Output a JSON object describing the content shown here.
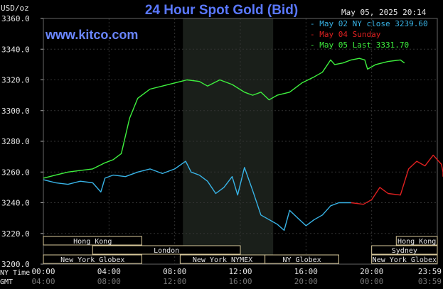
{
  "header": {
    "title": "24 Hour Spot Gold (Bid)",
    "timestamp": "May 05, 2025 20:14",
    "unit": "USD/oz",
    "brand": "www.kitco.com"
  },
  "legend": [
    {
      "label": "May 02 NY close 3239.60",
      "color": "#38b3e6"
    },
    {
      "label": "May 04 Sunday",
      "color": "#e02020"
    },
    {
      "label": "May 05 Last 3331.70",
      "color": "#3ef03e"
    }
  ],
  "timezones": {
    "ny": "NY Time",
    "gmt": "GMT"
  },
  "sessions": [
    {
      "name": "Hong Kong",
      "start": "00:00",
      "end": "06:00",
      "row": 1
    },
    {
      "name": "Hong Kong",
      "start": "21:30",
      "end": "24:00",
      "row": 1
    },
    {
      "name": "London",
      "start": "03:00",
      "end": "12:00",
      "row": 2
    },
    {
      "name": "Sydney",
      "start": "20:00",
      "end": "24:00",
      "row": 2
    },
    {
      "name": "New York Globex",
      "start": "00:00",
      "end": "06:00",
      "row": 3
    },
    {
      "name": "New York NYMEX",
      "start": "08:20",
      "end": "13:30",
      "row": 3
    },
    {
      "name": "NY Globex",
      "start": "13:30",
      "end": "18:00",
      "row": 3
    },
    {
      "name": "New York Globex",
      "start": "20:00",
      "end": "24:00",
      "row": 3
    }
  ],
  "chart_data": {
    "type": "line",
    "xlim": [
      "00:00",
      "24:00"
    ],
    "ylim": [
      3200,
      3360
    ],
    "yticks": [
      "3200.0",
      "3220.0",
      "3240.0",
      "3260.0",
      "3280.0",
      "3300.0",
      "3320.0",
      "3340.0",
      "3360.0"
    ],
    "xticks_ny": [
      "00:00",
      "04:00",
      "08:00",
      "12:00",
      "16:00",
      "20:00",
      "23:59"
    ],
    "xticks_gmt": [
      "04:00",
      "08:00",
      "12:00",
      "16:00",
      "20:00",
      "00:00",
      "03:59"
    ],
    "shaded_region": [
      "08:30",
      "14:00"
    ],
    "series": [
      {
        "name": "May 02 NY close 3239.60",
        "color": "#38b3e6",
        "points": [
          [
            "00:00",
            3255
          ],
          [
            "00:45",
            3253
          ],
          [
            "01:30",
            3252
          ],
          [
            "02:15",
            3254
          ],
          [
            "03:00",
            3253
          ],
          [
            "03:30",
            3247
          ],
          [
            "03:45",
            3256
          ],
          [
            "04:15",
            3258
          ],
          [
            "05:00",
            3257
          ],
          [
            "05:45",
            3260
          ],
          [
            "06:30",
            3262
          ],
          [
            "07:15",
            3259
          ],
          [
            "08:00",
            3262
          ],
          [
            "08:40",
            3267
          ],
          [
            "09:00",
            3260
          ],
          [
            "09:30",
            3258
          ],
          [
            "10:00",
            3254
          ],
          [
            "10:30",
            3246
          ],
          [
            "11:00",
            3250
          ],
          [
            "11:30",
            3257
          ],
          [
            "11:50",
            3245
          ],
          [
            "12:15",
            3263
          ],
          [
            "12:45",
            3248
          ],
          [
            "13:15",
            3232
          ],
          [
            "13:45",
            3229
          ],
          [
            "14:15",
            3226
          ],
          [
            "14:40",
            3222
          ],
          [
            "15:00",
            3235
          ],
          [
            "15:30",
            3230
          ],
          [
            "16:00",
            3225
          ],
          [
            "16:30",
            3229
          ],
          [
            "17:00",
            3232
          ],
          [
            "17:30",
            3238
          ],
          [
            "18:00",
            3240
          ],
          [
            "18:45",
            3240
          ]
        ]
      },
      {
        "name": "May 04 Sunday",
        "color": "#e02020",
        "points": [
          [
            "18:45",
            3240
          ],
          [
            "19:30",
            3239
          ],
          [
            "20:00",
            3242
          ],
          [
            "20:30",
            3250
          ],
          [
            "21:00",
            3246
          ],
          [
            "21:45",
            3245
          ],
          [
            "22:15",
            3262
          ],
          [
            "22:45",
            3267
          ],
          [
            "23:15",
            3264
          ],
          [
            "23:45",
            3271
          ],
          [
            "24:15",
            3265
          ],
          [
            "24:35",
            3260
          ],
          [
            "25:00",
            3257
          ]
        ]
      },
      {
        "name": "May 05 Last 3331.70",
        "color": "#3ef03e",
        "points": [
          [
            "00:00",
            3256
          ],
          [
            "00:45",
            3258
          ],
          [
            "01:30",
            3260
          ],
          [
            "02:15",
            3261
          ],
          [
            "03:00",
            3262
          ],
          [
            "03:45",
            3266
          ],
          [
            "04:15",
            3268
          ],
          [
            "04:45",
            3272
          ],
          [
            "05:15",
            3295
          ],
          [
            "05:45",
            3308
          ],
          [
            "06:30",
            3314
          ],
          [
            "07:15",
            3316
          ],
          [
            "08:00",
            3318
          ],
          [
            "08:45",
            3320
          ],
          [
            "09:30",
            3319
          ],
          [
            "10:00",
            3316
          ],
          [
            "10:45",
            3320
          ],
          [
            "11:30",
            3317
          ],
          [
            "12:15",
            3312
          ],
          [
            "12:45",
            3310
          ],
          [
            "13:15",
            3312
          ],
          [
            "13:45",
            3307
          ],
          [
            "14:15",
            3310
          ],
          [
            "15:00",
            3312
          ],
          [
            "15:45",
            3318
          ],
          [
            "16:30",
            3322
          ],
          [
            "17:00",
            3325
          ],
          [
            "17:30",
            3333
          ],
          [
            "17:45",
            3330
          ],
          [
            "18:15",
            3331
          ],
          [
            "18:45",
            3333
          ],
          [
            "19:15",
            3334
          ],
          [
            "19:35",
            3333
          ],
          [
            "19:45",
            3327
          ],
          [
            "20:15",
            3330
          ],
          [
            "21:00",
            3332
          ],
          [
            "21:45",
            3333
          ],
          [
            "22:00",
            3331
          ]
        ]
      }
    ]
  }
}
